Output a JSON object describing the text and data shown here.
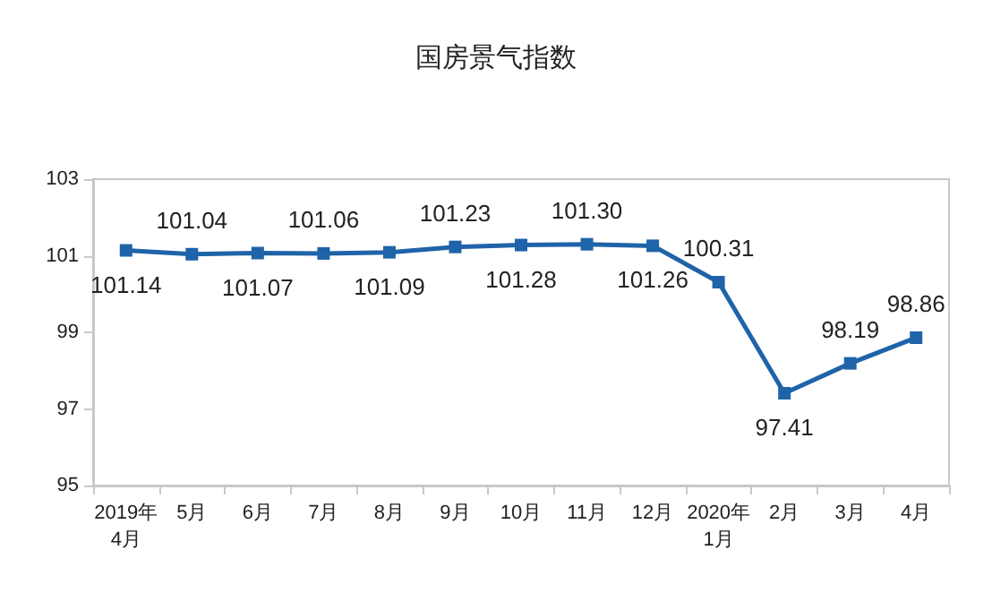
{
  "chart_data": {
    "type": "line",
    "title": "国房景气指数",
    "categories": [
      "2019年\n4月",
      "5月",
      "6月",
      "7月",
      "8月",
      "9月",
      "10月",
      "11月",
      "12月",
      "2020年\n1月",
      "2月",
      "3月",
      "4月"
    ],
    "series": [
      {
        "color": "#1f63a8",
        "values": [
          101.14,
          101.04,
          101.07,
          101.06,
          101.09,
          101.23,
          101.28,
          101.3,
          101.26,
          100.31,
          97.41,
          98.19,
          98.86
        ],
        "value_labels": [
          "101.14",
          "101.04",
          "101.07",
          "101.06",
          "101.09",
          "101.23",
          "101.28",
          "101.30",
          "101.26",
          "100.31",
          "97.41",
          "98.19",
          "98.86"
        ]
      }
    ],
    "ylim": [
      95,
      103
    ],
    "yticks": [
      95,
      97,
      99,
      101,
      103
    ],
    "grid": false,
    "marker": "square",
    "line_style": "solid"
  }
}
